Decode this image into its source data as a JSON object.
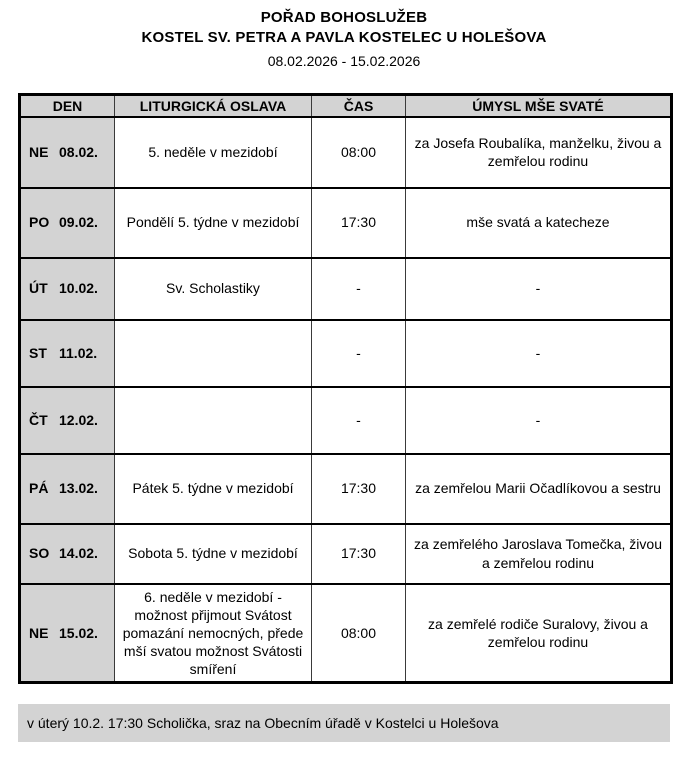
{
  "header": {
    "title": "POŘAD BOHOSLUŽEB",
    "subtitle": "KOSTEL SV. PETRA A PAVLA KOSTELEC U HOLEŠOVA",
    "date_range": "08.02.2026 - 15.02.2026"
  },
  "table": {
    "columns": [
      "DEN",
      "LITURGICKÁ OSLAVA",
      "ČAS",
      "ÚMYSL MŠE SVATÉ"
    ],
    "rows": [
      {
        "day": "NE",
        "date": "08.02.",
        "celebration": "5. neděle v mezidobí",
        "time": "08:00",
        "intention": "za Josefa Roubalíka, manželku, živou a zemřelou rodinu"
      },
      {
        "day": "PO",
        "date": "09.02.",
        "celebration": "Pondělí 5. týdne v mezidobí",
        "time": "17:30",
        "intention": "mše svatá a katecheze"
      },
      {
        "day": "ÚT",
        "date": "10.02.",
        "celebration": "Sv. Scholastiky",
        "time": "-",
        "intention": "-"
      },
      {
        "day": "ST",
        "date": "11.02.",
        "celebration": "",
        "time": "-",
        "intention": "-"
      },
      {
        "day": "ČT",
        "date": "12.02.",
        "celebration": "",
        "time": "-",
        "intention": "-"
      },
      {
        "day": "PÁ",
        "date": "13.02.",
        "celebration": "Pátek 5. týdne v mezidobí",
        "time": "17:30",
        "intention": "za zemřelou Marii Očadlíkovou a sestru"
      },
      {
        "day": "SO",
        "date": "14.02.",
        "celebration": "Sobota 5. týdne v mezidobí",
        "time": "17:30",
        "intention": "za zemřelého Jaroslava Tomečka, živou a zemřelou rodinu"
      },
      {
        "day": "NE",
        "date": "15.02.",
        "celebration": "6. neděle v mezidobí - možnost přijmout Svátost pomazání nemocných, přede mší svatou možnost Svátosti smíření",
        "time": "08:00",
        "intention": "za zemřelé rodiče Suralovy, živou a zemřelou rodinu"
      }
    ]
  },
  "footer": {
    "note": "v úterý 10.2. 17:30 Scholička, sraz na Obecním úřadě v Kostelci u Holešova"
  },
  "colors": {
    "panel_gray": "#d3d3d3",
    "border_black": "#000000",
    "text": "#000000"
  }
}
